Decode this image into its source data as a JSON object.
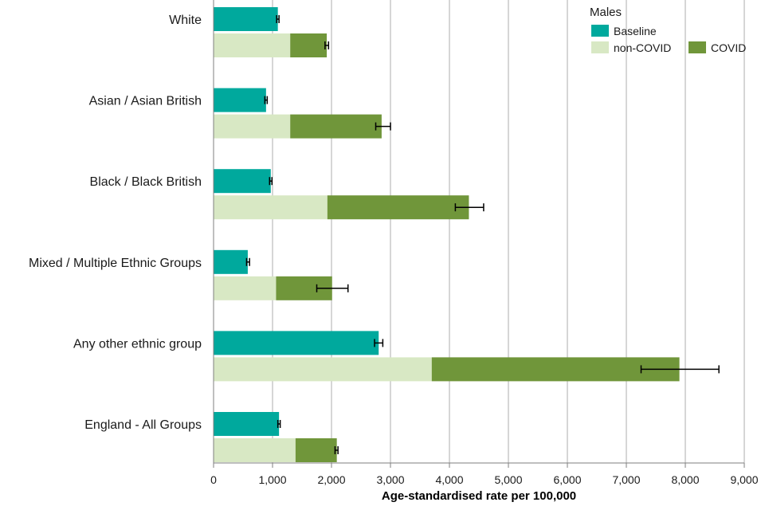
{
  "chart_data": {
    "type": "bar",
    "orientation": "horizontal",
    "stacked_second_bar": true,
    "categories": [
      "White",
      "Asian / Asian British",
      "Black / Black British",
      "Mixed / Multiple Ethnic Groups",
      "Any other ethnic group",
      "England - All Groups"
    ],
    "series": [
      {
        "name": "Baseline",
        "color": "#00a99d",
        "values": [
          1090,
          890,
          970,
          580,
          2800,
          1110
        ],
        "error": [
          [
            1070,
            1110
          ],
          [
            870,
            910
          ],
          [
            950,
            990
          ],
          [
            560,
            610
          ],
          [
            2730,
            2870
          ],
          [
            1090,
            1130
          ]
        ]
      },
      {
        "name": "non-COVID",
        "color": "#d8e8c4",
        "values": [
          1300,
          1300,
          1930,
          1060,
          3700,
          1390
        ]
      },
      {
        "name": "COVID",
        "color": "#70963a",
        "values": [
          620,
          1550,
          2400,
          950,
          4200,
          700
        ],
        "error": [
          [
            1890,
            1950
          ],
          [
            2750,
            3000
          ],
          [
            4100,
            4580
          ],
          [
            1750,
            2280
          ],
          [
            7250,
            8570
          ],
          [
            2060,
            2110
          ]
        ]
      }
    ],
    "xlabel": "Age-standardised rate per 100,000",
    "xlim": [
      0,
      9000
    ],
    "xticks": [
      "0",
      "1,000",
      "2,000",
      "3,000",
      "4,000",
      "5,000",
      "6,000",
      "7,000",
      "8,000",
      "9,000"
    ],
    "grid": "vertical",
    "legend": {
      "title": "Males",
      "position": "top-right",
      "items": [
        "Baseline",
        "non-COVID",
        "COVID"
      ]
    }
  }
}
